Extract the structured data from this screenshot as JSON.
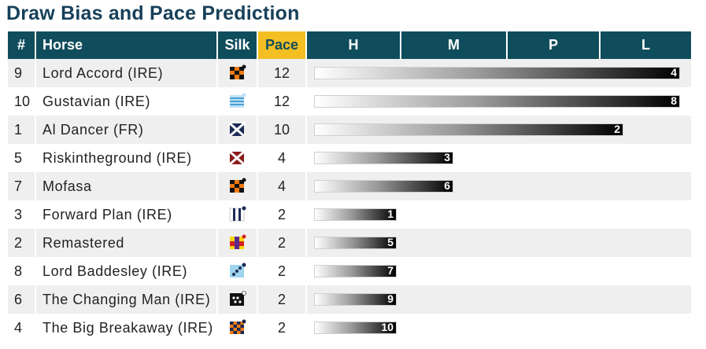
{
  "title": "Draw Bias and Pace Prediction",
  "headers": {
    "num": "#",
    "horse": "Horse",
    "silk": "Silk",
    "pace": "Pace",
    "h": "H",
    "m": "M",
    "p": "P",
    "l": "L"
  },
  "pace_scale_max": 12,
  "colors": {
    "header_bg": "#0f4d5c",
    "pace_header_bg": "#f3bf22",
    "title": "#17405a",
    "alt_row": "#efefef"
  },
  "rows": [
    {
      "num": "9",
      "horse": "Lord Accord (IRE)",
      "silk": "orange-black-check-silk-icon",
      "pace": 12,
      "bar_label": "4"
    },
    {
      "num": "10",
      "horse": "Gustavian (IRE)",
      "silk": "light-blue-hoops-silk-icon",
      "pace": 12,
      "bar_label": "8"
    },
    {
      "num": "1",
      "horse": "Al Dancer (FR)",
      "silk": "navy-white-cross-silk-icon",
      "pace": 10,
      "bar_label": "2"
    },
    {
      "num": "5",
      "horse": "Riskintheground (IRE)",
      "silk": "maroon-white-cross-silk-icon",
      "pace": 4,
      "bar_label": "3"
    },
    {
      "num": "7",
      "horse": "Mofasa",
      "silk": "orange-black-check-silk-icon",
      "pace": 4,
      "bar_label": "6"
    },
    {
      "num": "3",
      "horse": "Forward Plan (IRE)",
      "silk": "white-navy-stripes-silk-icon",
      "pace": 2,
      "bar_label": "1"
    },
    {
      "num": "2",
      "horse": "Remastered",
      "silk": "yellow-red-purple-silk-icon",
      "pace": 2,
      "bar_label": "5"
    },
    {
      "num": "8",
      "horse": "Lord Baddesley (IRE)",
      "silk": "light-blue-navy-spots-silk-icon",
      "pace": 2,
      "bar_label": "7"
    },
    {
      "num": "6",
      "horse": "The Changing Man (IRE)",
      "silk": "black-white-spots-silk-icon",
      "pace": 2,
      "bar_label": "9"
    },
    {
      "num": "4",
      "horse": "The Big Breakaway (IRE)",
      "silk": "orange-navy-check-silk-icon",
      "pace": 2,
      "bar_label": "10"
    }
  ]
}
